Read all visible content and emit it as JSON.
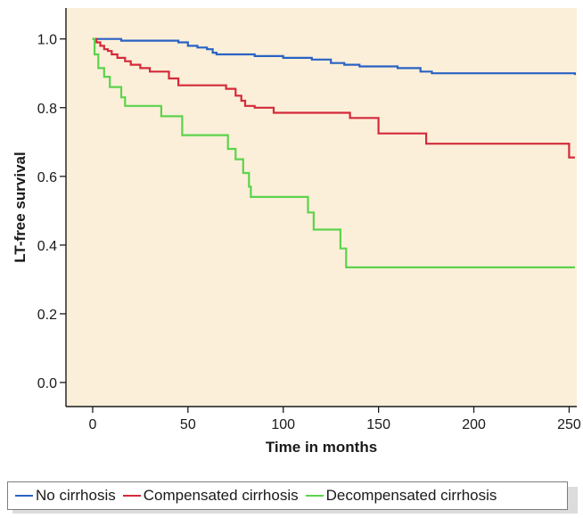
{
  "chart_data": {
    "type": "line",
    "xlabel": "Time in months",
    "ylabel": "LT-free survival",
    "xlim": [
      -14,
      254
    ],
    "ylim": [
      -0.07,
      1.09
    ],
    "x_ticks": [
      0,
      50,
      100,
      150,
      200,
      250
    ],
    "x_tick_labels": [
      "0",
      "50",
      "100",
      "150",
      "200",
      "250"
    ],
    "y_ticks": [
      0.0,
      0.2,
      0.4,
      0.6,
      0.8,
      1.0
    ],
    "y_tick_labels": [
      "0.0",
      "0.2",
      "0.4",
      "0.6",
      "0.8",
      "1.0"
    ],
    "grid": false,
    "plot_background": "#fbefd9",
    "legend_position": "bottom",
    "step": true,
    "series": [
      {
        "name": "No cirrhosis",
        "color": "#2a62c4",
        "x": [
          0,
          15,
          45,
          50,
          55,
          60,
          63,
          65,
          85,
          100,
          115,
          125,
          132,
          140,
          160,
          172,
          178,
          253
        ],
        "y": [
          1.0,
          0.995,
          0.99,
          0.98,
          0.975,
          0.97,
          0.96,
          0.955,
          0.95,
          0.945,
          0.94,
          0.93,
          0.925,
          0.92,
          0.915,
          0.905,
          0.9,
          0.895
        ]
      },
      {
        "name": "Compensated cirrhosis",
        "color": "#d42a3a",
        "x": [
          0,
          2,
          4,
          6,
          8,
          10,
          13,
          17,
          20,
          25,
          30,
          40,
          45,
          70,
          75,
          78,
          80,
          85,
          95,
          110,
          135,
          150,
          175,
          250,
          253
        ],
        "y": [
          1.0,
          0.99,
          0.98,
          0.97,
          0.965,
          0.955,
          0.945,
          0.935,
          0.925,
          0.915,
          0.905,
          0.885,
          0.865,
          0.855,
          0.835,
          0.82,
          0.805,
          0.8,
          0.785,
          0.785,
          0.77,
          0.725,
          0.695,
          0.655,
          0.655
        ]
      },
      {
        "name": "Decompensated cirrhosis",
        "color": "#5cd34c",
        "x": [
          0,
          1,
          3,
          6,
          9,
          15,
          17,
          36,
          47,
          71,
          75,
          79,
          82,
          83,
          113,
          116,
          130,
          133,
          253
        ],
        "y": [
          1.0,
          0.955,
          0.915,
          0.89,
          0.86,
          0.83,
          0.805,
          0.775,
          0.72,
          0.68,
          0.65,
          0.61,
          0.57,
          0.54,
          0.495,
          0.445,
          0.39,
          0.335,
          0.335
        ]
      }
    ]
  }
}
